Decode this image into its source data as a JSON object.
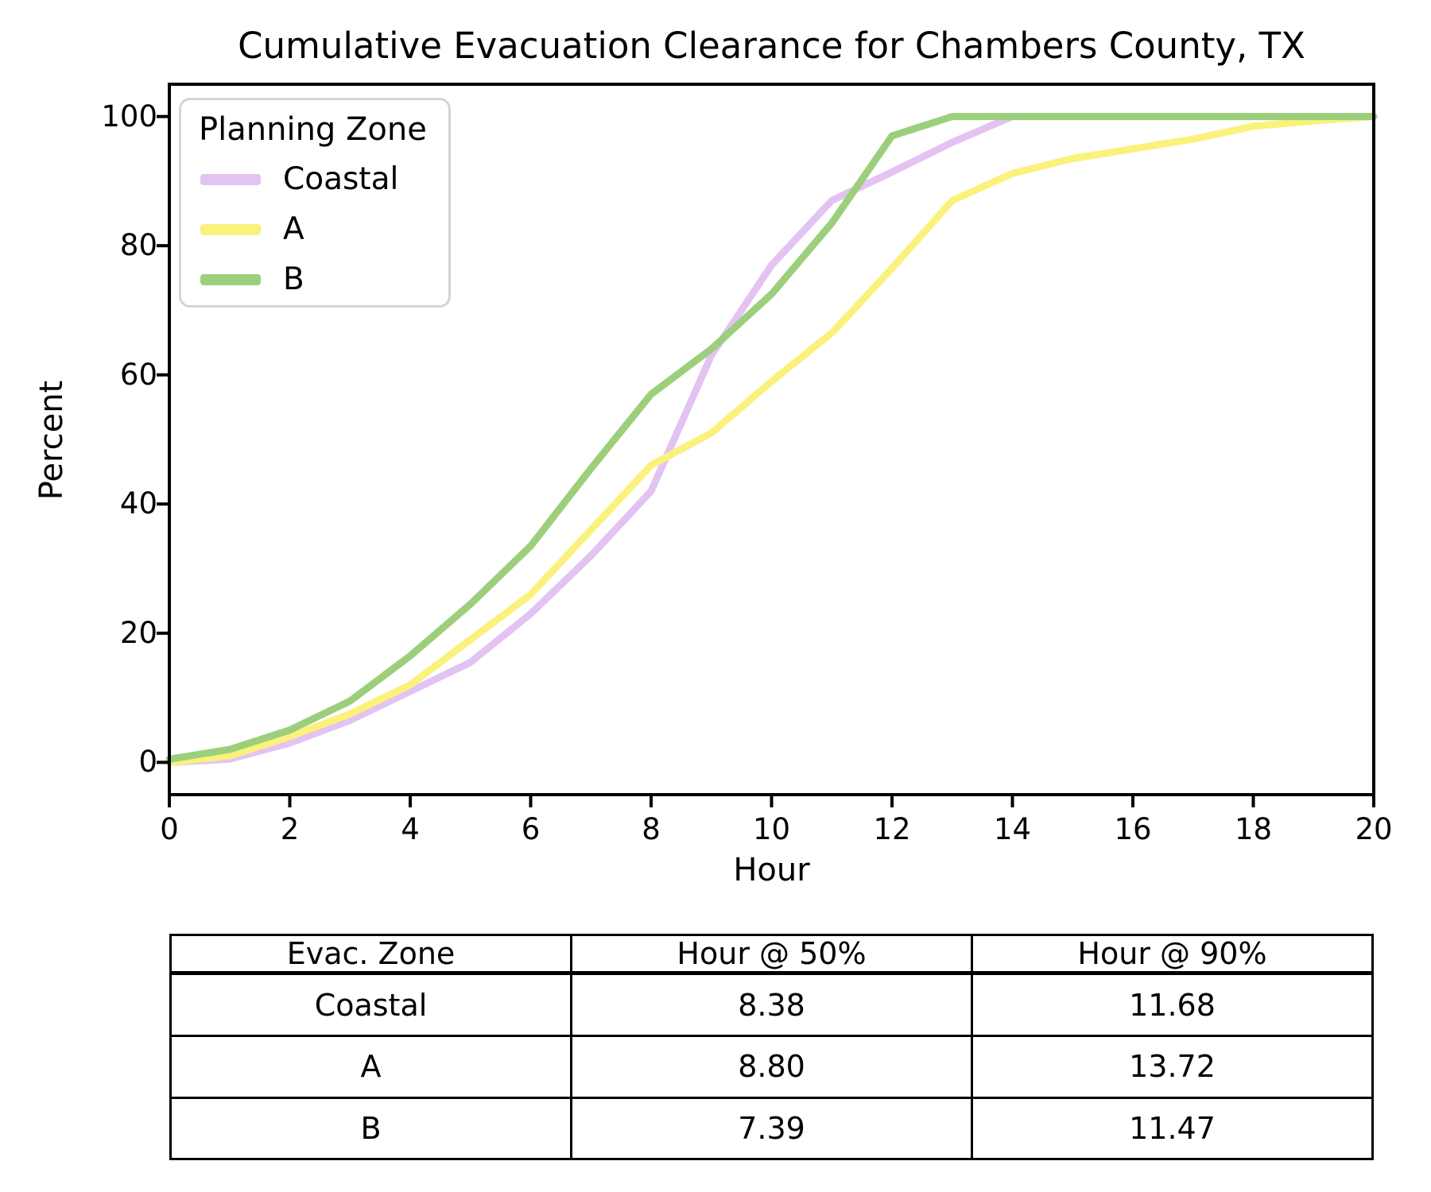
{
  "figure": {
    "title": "Cumulative Evacuation Clearance for Chambers County, TX",
    "background": "#ffffff"
  },
  "axes": {
    "xlabel": "Hour",
    "ylabel": "Percent",
    "x_ticks": [
      0,
      2,
      4,
      6,
      8,
      10,
      12,
      14,
      16,
      18,
      20
    ],
    "y_ticks": [
      0,
      20,
      40,
      60,
      80,
      100
    ],
    "spine_color": "#000000"
  },
  "legend": {
    "title": "Planning Zone",
    "items": [
      {
        "label": "Coastal",
        "color": "#e2c3f2"
      },
      {
        "label": "A",
        "color": "#fbf17d"
      },
      {
        "label": "B",
        "color": "#9ccf7c"
      }
    ]
  },
  "chart_data": {
    "type": "line",
    "title": "Cumulative Evacuation Clearance for Chambers County, TX",
    "xlabel": "Hour",
    "ylabel": "Percent",
    "xlim": [
      0,
      20
    ],
    "ylim": [
      0,
      100
    ],
    "grid": false,
    "legend_position": "upper left",
    "line_width": 9,
    "x": [
      0,
      1,
      2,
      3,
      4,
      5,
      6,
      7,
      8,
      9,
      10,
      11,
      12,
      13,
      14,
      15,
      16,
      17,
      18,
      19,
      20
    ],
    "series": [
      {
        "name": "Coastal",
        "color": "#e2c3f2",
        "values": [
          0,
          0.5,
          3,
          6.5,
          11,
          15.5,
          23,
          32,
          42,
          63,
          77,
          87,
          91.4,
          96,
          100,
          100,
          100,
          100,
          100,
          100,
          100
        ]
      },
      {
        "name": "A",
        "color": "#fbf17d",
        "values": [
          0,
          1,
          4,
          7.5,
          12,
          19,
          26,
          36,
          46,
          51,
          59,
          66.5,
          76.5,
          87,
          91.2,
          93.5,
          95,
          96.5,
          98.5,
          99.3,
          100
        ]
      },
      {
        "name": "B",
        "color": "#9ccf7c",
        "values": [
          0.5,
          2,
          5,
          9.5,
          16.5,
          24.5,
          33.5,
          45.5,
          57,
          64,
          72.5,
          83.5,
          97,
          100,
          100,
          100,
          100,
          100,
          100,
          100,
          100
        ]
      }
    ]
  },
  "table": {
    "headers": [
      "Evac. Zone",
      "Hour @ 50%",
      "Hour @ 90%"
    ],
    "rows": [
      [
        "Coastal",
        "8.38",
        "11.68"
      ],
      [
        "A",
        "8.80",
        "13.72"
      ],
      [
        "B",
        "7.39",
        "11.47"
      ]
    ]
  }
}
